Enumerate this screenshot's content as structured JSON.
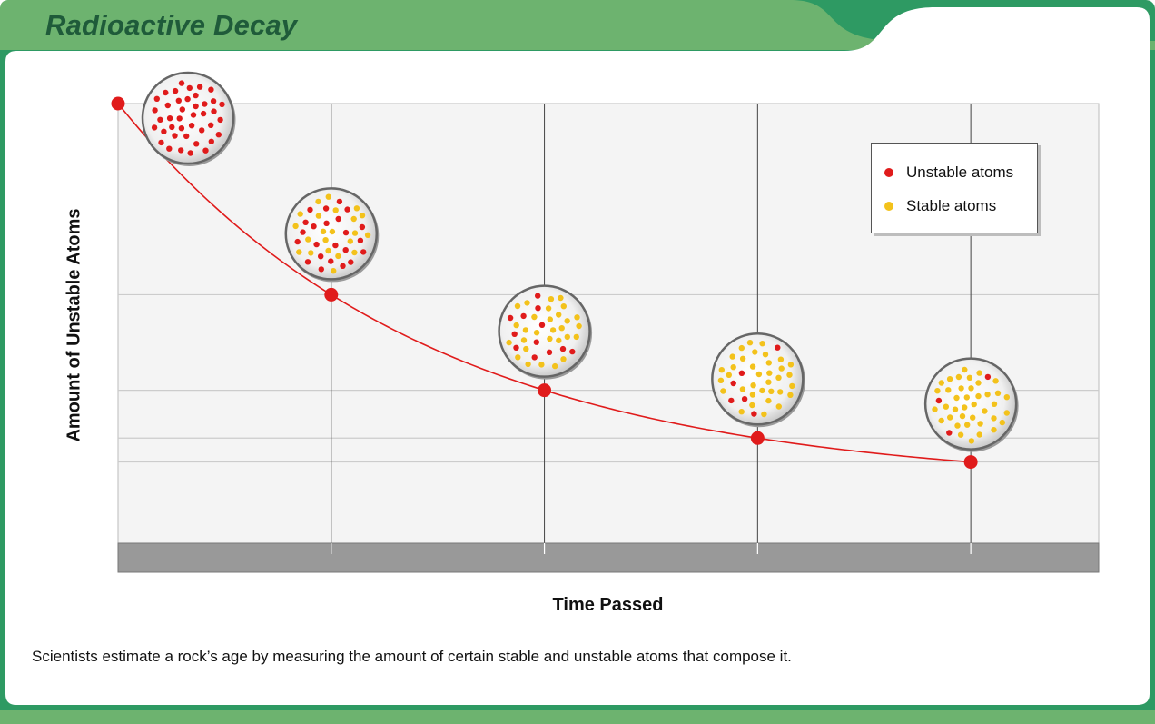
{
  "page": {
    "title": "Radioactive Decay",
    "caption": "Scientists estimate a rock’s age by measuring the amount of certain stable and unstable atoms that compose it."
  },
  "colors": {
    "frame_green": "#2e9a63",
    "title_band_green": "#6db36f",
    "title_text": "#1f5b3a",
    "plot_bg": "#f4f4f4",
    "grid": "#cccccc",
    "vertical_lines": "#444444",
    "ground": "#999999",
    "curve": "#e01b1b",
    "unstable": "#e01b1b",
    "stable": "#f3c21b"
  },
  "chart_data": {
    "type": "line",
    "title": "",
    "xlabel": "Time Passed",
    "ylabel": "Amount of Unstable Atoms",
    "x": [
      0,
      1,
      2,
      3,
      4
    ],
    "series": [
      {
        "name": "Unstable atoms",
        "values": [
          1.0,
          0.5,
          0.25,
          0.125,
          0.0625
        ]
      }
    ],
    "xlim": [
      0,
      4.6
    ],
    "ylim": [
      -0.15,
      1.0
    ],
    "grid": true,
    "legend": {
      "placement": "top-right",
      "entries": [
        {
          "label": "Unstable atoms",
          "color": "#e01b1b"
        },
        {
          "label": "Stable atoms",
          "color": "#f3c21b"
        }
      ]
    },
    "sample_spheres": [
      {
        "unstable_fraction": 1.0
      },
      {
        "unstable_fraction": 0.5
      },
      {
        "unstable_fraction": 0.25
      },
      {
        "unstable_fraction": 0.125
      },
      {
        "unstable_fraction": 0.0625
      }
    ]
  }
}
